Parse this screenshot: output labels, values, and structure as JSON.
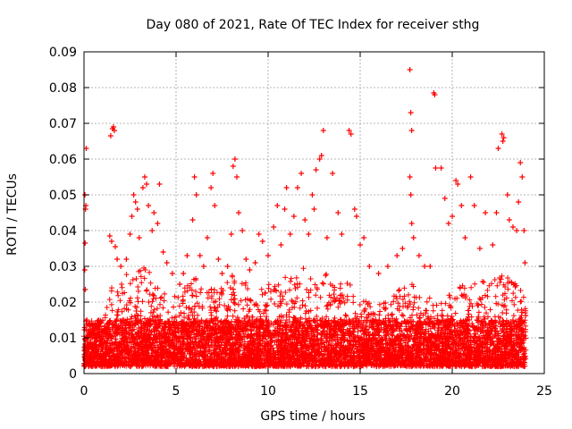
{
  "chart_data": {
    "type": "scatter",
    "title": "Day 080 of 2021, Rate Of TEC Index for receiver sthg",
    "xlabel": "GPS time / hours",
    "ylabel": "ROTI / TECUs",
    "xlim": [
      0,
      25
    ],
    "ylim": [
      0,
      0.09
    ],
    "x_ticks": [
      0,
      5,
      10,
      15,
      20,
      25
    ],
    "x_tick_labels": [
      "0",
      "5",
      "10",
      "15",
      "20",
      "25"
    ],
    "y_ticks": [
      0,
      0.01,
      0.02,
      0.03,
      0.04,
      0.05,
      0.06,
      0.07,
      0.08,
      0.09
    ],
    "y_tick_labels": [
      "0",
      "0.01",
      "0.02",
      "0.03",
      "0.04",
      "0.05",
      "0.06",
      "0.07",
      "0.08",
      "0.09"
    ],
    "grid": true,
    "marker": "+",
    "marker_color": "#ff0000",
    "series": [
      {
        "name": "ROTI",
        "points": [
          [
            0.05,
            0.05
          ],
          [
            0.08,
            0.046
          ],
          [
            0.1,
            0.047
          ],
          [
            0.12,
            0.063
          ],
          [
            0.06,
            0.0365
          ],
          [
            0.04,
            0.029
          ],
          [
            0.07,
            0.0235
          ],
          [
            0.15,
            0.015
          ],
          [
            0.2,
            0.011
          ],
          [
            1.45,
            0.0665
          ],
          [
            1.55,
            0.0685
          ],
          [
            1.6,
            0.069
          ],
          [
            1.65,
            0.068
          ],
          [
            1.4,
            0.0385
          ],
          [
            1.5,
            0.037
          ],
          [
            1.7,
            0.0355
          ],
          [
            1.8,
            0.032
          ],
          [
            2.0,
            0.03
          ],
          [
            2.3,
            0.032
          ],
          [
            2.5,
            0.039
          ],
          [
            2.6,
            0.044
          ],
          [
            2.7,
            0.05
          ],
          [
            2.8,
            0.048
          ],
          [
            2.9,
            0.046
          ],
          [
            3.0,
            0.038
          ],
          [
            3.2,
            0.052
          ],
          [
            3.3,
            0.055
          ],
          [
            3.4,
            0.053
          ],
          [
            3.5,
            0.047
          ],
          [
            3.7,
            0.04
          ],
          [
            3.8,
            0.045
          ],
          [
            4.0,
            0.042
          ],
          [
            4.1,
            0.053
          ],
          [
            4.3,
            0.034
          ],
          [
            4.5,
            0.031
          ],
          [
            4.8,
            0.028
          ],
          [
            5.2,
            0.025
          ],
          [
            5.4,
            0.028
          ],
          [
            5.6,
            0.033
          ],
          [
            5.9,
            0.043
          ],
          [
            6.0,
            0.055
          ],
          [
            6.1,
            0.05
          ],
          [
            6.3,
            0.033
          ],
          [
            6.5,
            0.03
          ],
          [
            6.7,
            0.038
          ],
          [
            6.9,
            0.052
          ],
          [
            7.0,
            0.056
          ],
          [
            7.1,
            0.047
          ],
          [
            7.3,
            0.032
          ],
          [
            7.5,
            0.028
          ],
          [
            7.8,
            0.03
          ],
          [
            8.0,
            0.039
          ],
          [
            8.1,
            0.058
          ],
          [
            8.2,
            0.06
          ],
          [
            8.3,
            0.055
          ],
          [
            8.4,
            0.045
          ],
          [
            8.6,
            0.04
          ],
          [
            8.8,
            0.032
          ],
          [
            9.0,
            0.029
          ],
          [
            9.3,
            0.031
          ],
          [
            9.5,
            0.039
          ],
          [
            9.7,
            0.037
          ],
          [
            10.0,
            0.033
          ],
          [
            10.3,
            0.041
          ],
          [
            10.5,
            0.047
          ],
          [
            10.7,
            0.036
          ],
          [
            10.9,
            0.046
          ],
          [
            11.0,
            0.052
          ],
          [
            11.2,
            0.039
          ],
          [
            11.4,
            0.044
          ],
          [
            11.6,
            0.052
          ],
          [
            11.8,
            0.056
          ],
          [
            12.0,
            0.043
          ],
          [
            12.2,
            0.039
          ],
          [
            12.4,
            0.05
          ],
          [
            12.5,
            0.046
          ],
          [
            12.6,
            0.057
          ],
          [
            12.8,
            0.06
          ],
          [
            12.9,
            0.061
          ],
          [
            13.0,
            0.068
          ],
          [
            13.2,
            0.038
          ],
          [
            13.5,
            0.056
          ],
          [
            13.8,
            0.045
          ],
          [
            14.0,
            0.039
          ],
          [
            14.4,
            0.068
          ],
          [
            14.5,
            0.067
          ],
          [
            14.7,
            0.046
          ],
          [
            14.8,
            0.044
          ],
          [
            15.0,
            0.036
          ],
          [
            15.2,
            0.038
          ],
          [
            15.5,
            0.03
          ],
          [
            16.0,
            0.028
          ],
          [
            16.5,
            0.03
          ],
          [
            17.0,
            0.033
          ],
          [
            17.3,
            0.035
          ],
          [
            17.7,
            0.085
          ],
          [
            17.75,
            0.073
          ],
          [
            17.8,
            0.068
          ],
          [
            17.7,
            0.055
          ],
          [
            17.75,
            0.05
          ],
          [
            17.8,
            0.042
          ],
          [
            17.9,
            0.038
          ],
          [
            18.2,
            0.033
          ],
          [
            18.5,
            0.03
          ],
          [
            18.8,
            0.03
          ],
          [
            19.0,
            0.0785
          ],
          [
            19.05,
            0.078
          ],
          [
            19.1,
            0.0575
          ],
          [
            19.4,
            0.0575
          ],
          [
            19.6,
            0.049
          ],
          [
            19.8,
            0.042
          ],
          [
            20.0,
            0.044
          ],
          [
            20.2,
            0.054
          ],
          [
            20.3,
            0.053
          ],
          [
            20.5,
            0.047
          ],
          [
            20.7,
            0.038
          ],
          [
            21.0,
            0.055
          ],
          [
            21.2,
            0.047
          ],
          [
            21.5,
            0.035
          ],
          [
            21.8,
            0.045
          ],
          [
            22.2,
            0.036
          ],
          [
            22.4,
            0.045
          ],
          [
            22.5,
            0.063
          ],
          [
            22.7,
            0.067
          ],
          [
            22.75,
            0.065
          ],
          [
            22.8,
            0.066
          ],
          [
            23.0,
            0.05
          ],
          [
            23.1,
            0.043
          ],
          [
            23.3,
            0.041
          ],
          [
            23.5,
            0.04
          ],
          [
            23.6,
            0.048
          ],
          [
            23.7,
            0.059
          ],
          [
            23.8,
            0.055
          ],
          [
            23.9,
            0.04
          ],
          [
            23.95,
            0.031
          ]
        ]
      }
    ],
    "dense_band": {
      "description": "dense cloud of points between 0.002 and ~0.015 across 0–24 h, with secondary density up to ~0.03",
      "x_range": [
        0,
        24
      ],
      "y_core": [
        0.002,
        0.015
      ],
      "y_envelope_by_hour": [
        [
          0,
          0.012
        ],
        [
          1,
          0.015
        ],
        [
          1.5,
          0.024
        ],
        [
          2,
          0.025
        ],
        [
          2.5,
          0.03
        ],
        [
          3,
          0.03
        ],
        [
          3.5,
          0.03
        ],
        [
          4,
          0.026
        ],
        [
          4.5,
          0.022
        ],
        [
          5,
          0.022
        ],
        [
          5.5,
          0.025
        ],
        [
          6,
          0.027
        ],
        [
          6.5,
          0.024
        ],
        [
          7,
          0.024
        ],
        [
          7.5,
          0.024
        ],
        [
          8,
          0.028
        ],
        [
          8.5,
          0.026
        ],
        [
          9,
          0.025
        ],
        [
          9.5,
          0.025
        ],
        [
          10,
          0.025
        ],
        [
          10.5,
          0.026
        ],
        [
          11,
          0.028
        ],
        [
          11.5,
          0.028
        ],
        [
          12,
          0.03
        ],
        [
          12.5,
          0.03
        ],
        [
          13,
          0.028
        ],
        [
          13.5,
          0.028
        ],
        [
          14,
          0.026
        ],
        [
          14.5,
          0.025
        ],
        [
          15,
          0.022
        ],
        [
          15.5,
          0.02
        ],
        [
          16,
          0.02
        ],
        [
          16.5,
          0.022
        ],
        [
          17,
          0.023
        ],
        [
          17.5,
          0.025
        ],
        [
          18,
          0.025
        ],
        [
          18.5,
          0.023
        ],
        [
          19,
          0.02
        ],
        [
          19.5,
          0.02
        ],
        [
          20,
          0.023
        ],
        [
          20.5,
          0.025
        ],
        [
          21,
          0.025
        ],
        [
          21.5,
          0.027
        ],
        [
          22,
          0.026
        ],
        [
          22.5,
          0.028
        ],
        [
          23,
          0.027
        ],
        [
          23.5,
          0.026
        ],
        [
          24,
          0.022
        ]
      ]
    }
  }
}
